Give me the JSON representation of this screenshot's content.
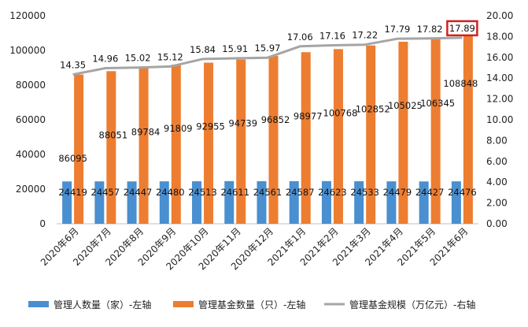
{
  "chart_data": {
    "type": "bar",
    "categories": [
      "2020年6月",
      "2020年7月",
      "2020年8月",
      "2020年9月",
      "2020年10月",
      "2020年11月",
      "2020年12月",
      "2021年1月",
      "2021年2月",
      "2021年3月",
      "2021年4月",
      "2021年5月",
      "2021年6月"
    ],
    "series": [
      {
        "name": "管理人数量（家）-左轴",
        "type": "bar",
        "axis": "left",
        "color": "#4A8FD0",
        "values": [
          24419,
          24457,
          24447,
          24480,
          24513,
          24611,
          24561,
          24587,
          24623,
          24533,
          24479,
          24427,
          24476
        ]
      },
      {
        "name": "管理基金数量（只）-左轴",
        "type": "bar",
        "axis": "left",
        "color": "#ED7D31",
        "values": [
          86095,
          88051,
          89784,
          91809,
          92955,
          94739,
          96852,
          98977,
          100768,
          102852,
          105025,
          106345,
          108848
        ]
      },
      {
        "name": "管理基金规模（万亿元）-右轴",
        "type": "line",
        "axis": "right",
        "color": "#A5A5A5",
        "values": [
          14.35,
          14.96,
          15.02,
          15.12,
          15.84,
          15.91,
          15.97,
          17.06,
          17.16,
          17.22,
          17.79,
          17.82,
          17.89
        ]
      }
    ],
    "y_left": {
      "min": 0,
      "max": 120000,
      "step": 20000,
      "ticks": [
        "0",
        "20000",
        "40000",
        "60000",
        "80000",
        "100000",
        "120000"
      ]
    },
    "y_right": {
      "min": 0,
      "max": 20,
      "step": 2,
      "ticks": [
        "0.00",
        "2.00",
        "4.00",
        "6.00",
        "8.00",
        "10.00",
        "12.00",
        "14.00",
        "16.00",
        "18.00",
        "20.00"
      ]
    },
    "highlight": {
      "series_index": 2,
      "point_index": 12,
      "color": "#D42020"
    },
    "grid": false,
    "legend_position": "bottom"
  }
}
